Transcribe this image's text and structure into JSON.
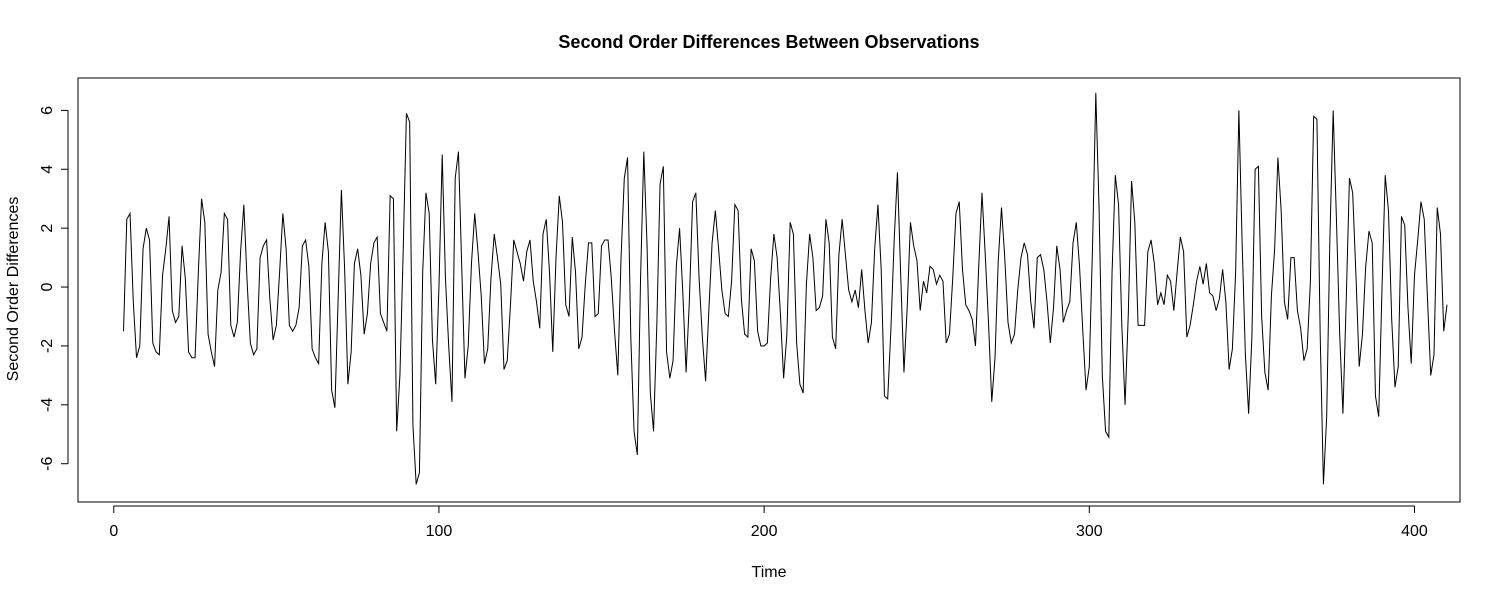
{
  "chart_data": {
    "type": "line",
    "title": "Second Order Differences Between Observations",
    "xlabel": "Time",
    "ylabel": "Second Order Differences",
    "xlim": [
      -11,
      414
    ],
    "ylim": [
      -7.3,
      7.1
    ],
    "xticks": [
      0,
      100,
      200,
      300,
      400
    ],
    "yticks": [
      -6,
      -4,
      -2,
      0,
      2,
      4,
      6
    ],
    "grid": false,
    "legend": "none",
    "line_color": "#000000",
    "x_start": 3,
    "x_step": 1,
    "series": [
      {
        "values": [
          -1.5,
          2.3,
          2.5,
          -0.5,
          -2.4,
          -2.0,
          1.3,
          2.0,
          1.6,
          -1.9,
          -2.2,
          -2.3,
          0.4,
          1.3,
          2.4,
          -0.8,
          -1.2,
          -1.0,
          1.4,
          0.3,
          -2.2,
          -2.4,
          -2.4,
          0.5,
          3.0,
          2.2,
          -1.6,
          -2.2,
          -2.7,
          -0.1,
          0.5,
          2.5,
          2.3,
          -1.3,
          -1.7,
          -1.2,
          1.2,
          2.8,
          0.2,
          -1.9,
          -2.3,
          -2.1,
          1.0,
          1.4,
          1.6,
          -0.4,
          -1.8,
          -1.3,
          0.5,
          2.5,
          1.3,
          -1.3,
          -1.5,
          -1.3,
          -0.7,
          1.4,
          1.6,
          0.7,
          -2.1,
          -2.4,
          -2.6,
          0.8,
          2.2,
          1.2,
          -3.5,
          -4.1,
          -0.4,
          3.3,
          0.6,
          -3.3,
          -2.2,
          0.8,
          1.3,
          0.4,
          -1.6,
          -0.9,
          0.8,
          1.5,
          1.7,
          -0.9,
          -1.2,
          -1.5,
          3.1,
          3.0,
          -4.9,
          -3.0,
          1.2,
          5.9,
          5.6,
          -4.7,
          -6.7,
          -6.3,
          0.5,
          3.2,
          2.5,
          -1.8,
          -3.3,
          0.0,
          4.5,
          0.3,
          -2.0,
          -3.9,
          3.7,
          4.6,
          0.7,
          -3.1,
          -2.0,
          0.8,
          2.5,
          1.2,
          -0.3,
          -2.6,
          -2.1,
          0.3,
          1.8,
          1.0,
          0.1,
          -2.8,
          -2.5,
          -0.6,
          1.6,
          1.2,
          0.8,
          0.2,
          1.2,
          1.6,
          0.2,
          -0.5,
          -1.4,
          1.8,
          2.3,
          0.5,
          -2.2,
          1.0,
          3.1,
          2.2,
          -0.6,
          -1.0,
          1.7,
          0.5,
          -2.1,
          -1.7,
          0.1,
          1.5,
          1.5,
          -1.0,
          -0.9,
          1.4,
          1.6,
          1.6,
          0.3,
          -1.5,
          -3.0,
          1.0,
          3.7,
          4.4,
          -1.7,
          -4.9,
          -5.7,
          0.3,
          4.6,
          1.4,
          -3.6,
          -4.9,
          -1.3,
          3.5,
          4.1,
          -2.2,
          -3.1,
          -2.5,
          0.7,
          2.0,
          -0.2,
          -2.9,
          -0.5,
          2.9,
          3.2,
          0.3,
          -1.7,
          -3.2,
          -0.8,
          1.5,
          2.6,
          1.3,
          -0.1,
          -0.9,
          -1.0,
          0.2,
          2.8,
          2.6,
          -0.4,
          -1.6,
          -1.7,
          1.3,
          0.9,
          -1.5,
          -2.0,
          -2.0,
          -1.9,
          0.3,
          1.8,
          1.0,
          -0.9,
          -3.1,
          -1.6,
          2.2,
          1.8,
          -1.9,
          -3.3,
          -3.6,
          0.1,
          1.8,
          1.0,
          -0.8,
          -0.7,
          -0.3,
          2.3,
          1.5,
          -1.7,
          -2.1,
          1.1,
          2.3,
          1.1,
          -0.1,
          -0.5,
          -0.1,
          -0.7,
          0.6,
          -0.8,
          -1.9,
          -1.2,
          1.3,
          2.8,
          0.6,
          -3.7,
          -3.8,
          -1.4,
          1.6,
          3.9,
          0.4,
          -2.9,
          -0.7,
          2.2,
          1.4,
          0.9,
          -0.8,
          0.2,
          -0.2,
          0.7,
          0.6,
          0.1,
          0.4,
          0.2,
          -1.9,
          -1.6,
          0.3,
          2.5,
          2.9,
          0.6,
          -0.6,
          -0.8,
          -1.1,
          -2.0,
          0.7,
          3.2,
          1.1,
          -1.2,
          -3.9,
          -2.4,
          0.9,
          2.7,
          1.0,
          -1.2,
          -1.9,
          -1.6,
          -0.1,
          1.0,
          1.5,
          1.1,
          -0.5,
          -1.4,
          1.0,
          1.1,
          0.6,
          -0.5,
          -1.9,
          -0.7,
          1.4,
          0.6,
          -1.2,
          -0.8,
          -0.5,
          1.5,
          2.2,
          0.7,
          -1.5,
          -3.5,
          -2.7,
          1.4,
          6.6,
          2.7,
          -3.0,
          -4.9,
          -5.1,
          0.5,
          3.8,
          2.8,
          -1.3,
          -4.0,
          -0.9,
          3.6,
          2.2,
          -1.3,
          -1.3,
          -1.3,
          1.2,
          1.6,
          0.8,
          -0.6,
          -0.2,
          -0.6,
          0.4,
          0.2,
          -0.8,
          0.5,
          1.7,
          1.2,
          -1.7,
          -1.3,
          -0.6,
          0.2,
          0.7,
          0.1,
          0.8,
          -0.2,
          -0.3,
          -0.8,
          -0.4,
          0.6,
          -0.5,
          -2.8,
          -2.1,
          0.5,
          6.0,
          1.5,
          -2.3,
          -4.3,
          -1.7,
          4.0,
          4.1,
          -1.0,
          -2.9,
          -3.5,
          -0.3,
          1.3,
          4.4,
          2.6,
          -0.5,
          -1.1,
          1.0,
          1.0,
          -0.8,
          -1.4,
          -2.5,
          -2.1,
          0.2,
          5.8,
          5.7,
          -1.6,
          -6.7,
          -4.4,
          1.7,
          6.0,
          2.3,
          -1.6,
          -4.3,
          -0.5,
          3.7,
          3.2,
          0.4,
          -2.7,
          -1.6,
          0.7,
          1.9,
          1.5,
          -3.7,
          -4.4,
          -0.1,
          3.8,
          2.6,
          -1.1,
          -3.4,
          -2.7,
          2.4,
          2.1,
          -0.7,
          -2.6,
          0.4,
          1.6,
          2.9,
          2.3,
          -0.4,
          -3.0,
          -2.3,
          2.7,
          1.8,
          -1.5,
          -0.6
        ]
      }
    ]
  }
}
